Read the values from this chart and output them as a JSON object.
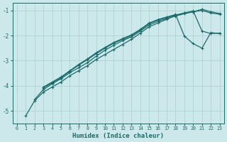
{
  "xlabel": "Humidex (Indice chaleur)",
  "bg_color": "#cde8ea",
  "line_color": "#1a6b6b",
  "grid_color": "#afd4d4",
  "xlim": [
    -0.5,
    23.5
  ],
  "ylim": [
    -5.5,
    -0.7
  ],
  "yticks": [
    -5,
    -4,
    -3,
    -2,
    -1
  ],
  "xticks": [
    0,
    1,
    2,
    3,
    4,
    5,
    6,
    7,
    8,
    9,
    10,
    11,
    12,
    13,
    14,
    15,
    16,
    17,
    18,
    19,
    20,
    21,
    22,
    23
  ],
  "series": [
    [
      null,
      -5.2,
      -4.6,
      -4.25,
      -4.05,
      -3.85,
      -3.6,
      -3.4,
      -3.2,
      -2.95,
      -2.75,
      -2.55,
      -2.35,
      -2.15,
      -1.9,
      -1.65,
      -1.5,
      -1.35,
      -1.2,
      -1.1,
      -1.05,
      -1.0,
      -1.1,
      -1.15
    ],
    [
      null,
      null,
      -4.55,
      -4.15,
      -3.92,
      -3.72,
      -3.48,
      -3.28,
      -3.08,
      -2.82,
      -2.58,
      -2.38,
      -2.2,
      -2.05,
      -1.82,
      -1.58,
      -1.43,
      -1.32,
      -1.22,
      -1.13,
      -1.05,
      -0.95,
      -1.05,
      -1.12
    ],
    [
      null,
      null,
      null,
      -4.08,
      -3.88,
      -3.68,
      -3.42,
      -3.18,
      -2.96,
      -2.72,
      -2.5,
      -2.3,
      -2.15,
      -2.0,
      -1.78,
      -1.52,
      -1.38,
      -1.28,
      -1.18,
      -1.1,
      -1.02,
      -1.82,
      -1.92,
      -1.9
    ],
    [
      null,
      null,
      null,
      -4.05,
      -3.85,
      -3.65,
      -3.4,
      -3.15,
      -2.93,
      -2.68,
      -2.47,
      -2.27,
      -2.12,
      -1.97,
      -1.75,
      -1.5,
      -1.36,
      -1.26,
      -1.16,
      -2.02,
      -2.32,
      -2.5,
      -1.88,
      -1.92
    ]
  ]
}
